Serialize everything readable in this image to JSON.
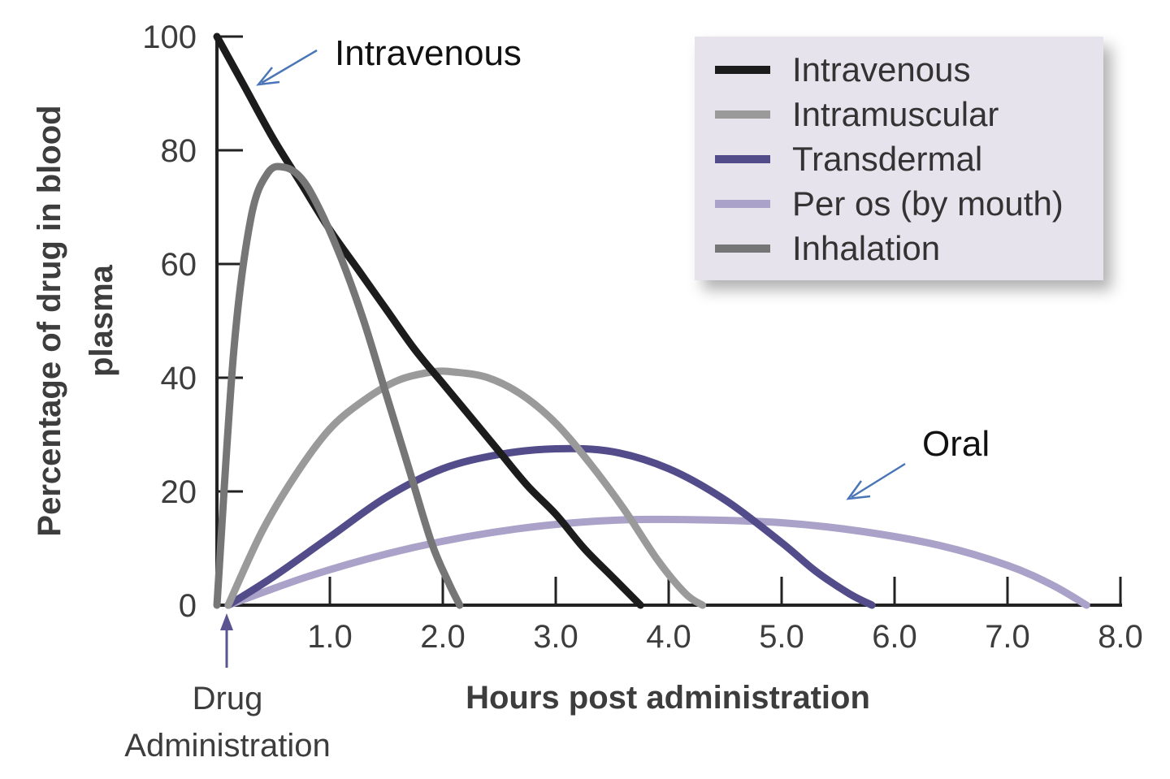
{
  "chart_data": {
    "type": "line",
    "ylabel_lines": [
      "Percentage of drug in blood",
      "plasma"
    ],
    "xlabel": "Hours post administration",
    "xlim": [
      0,
      8.0
    ],
    "ylim": [
      0,
      100
    ],
    "x_ticks": [
      1.0,
      2.0,
      3.0,
      4.0,
      5.0,
      6.0,
      7.0,
      8.0
    ],
    "x_tick_labels": [
      "1.0",
      "2.0",
      "3.0",
      "4.0",
      "5.0",
      "6.0",
      "7.0",
      "8.0"
    ],
    "y_ticks": [
      0,
      20,
      40,
      60,
      80,
      100
    ],
    "y_tick_labels": [
      "0",
      "20",
      "40",
      "60",
      "80",
      "100"
    ],
    "grid": false,
    "legend_position": "top-right",
    "series": [
      {
        "name": "Intravenous",
        "color": "#1c1c1c",
        "x": [
          0,
          0.25,
          0.5,
          0.75,
          1.0,
          1.25,
          1.5,
          1.75,
          2.0,
          2.25,
          2.5,
          2.75,
          3.0,
          3.25,
          3.5,
          3.75
        ],
        "y": [
          100,
          91,
          82,
          74,
          66,
          59,
          52,
          45,
          39,
          33,
          27,
          21,
          16,
          10,
          5,
          0
        ]
      },
      {
        "name": "Intramuscular",
        "color": "#9a9a9a",
        "x": [
          0.1,
          0.4,
          0.7,
          1.0,
          1.3,
          1.6,
          1.9,
          2.1,
          2.4,
          2.7,
          3.0,
          3.3,
          3.6,
          3.9,
          4.15,
          4.3
        ],
        "y": [
          0,
          13,
          23,
          31,
          36,
          39.5,
          41,
          41,
          40,
          37,
          32,
          25,
          17,
          8,
          2,
          0
        ]
      },
      {
        "name": "Transdermal",
        "color": "#534c8a",
        "x": [
          0.1,
          0.5,
          1.0,
          1.5,
          2.0,
          2.5,
          3.0,
          3.5,
          4.0,
          4.5,
          5.0,
          5.3,
          5.6,
          5.8
        ],
        "y": [
          0,
          5,
          12,
          19,
          24,
          26.5,
          27.5,
          27,
          24,
          18.5,
          11,
          6,
          2,
          0
        ]
      },
      {
        "name": "Per os (by mouth)",
        "color": "#aaa2c8",
        "x": [
          0.1,
          0.8,
          1.5,
          2.2,
          2.9,
          3.6,
          4.3,
          5.0,
          5.7,
          6.4,
          7.0,
          7.4,
          7.7
        ],
        "y": [
          0,
          5,
          9,
          12,
          14,
          15,
          15,
          14.5,
          13,
          10.5,
          7,
          3.5,
          0
        ]
      },
      {
        "name": "Inhalation",
        "color": "#767676",
        "x": [
          0,
          0.15,
          0.3,
          0.45,
          0.6,
          0.75,
          0.9,
          1.1,
          1.3,
          1.5,
          1.7,
          1.9,
          2.05,
          2.15
        ],
        "y": [
          0,
          45,
          68,
          76,
          77,
          75,
          70,
          61,
          50,
          37,
          24,
          11,
          4,
          0
        ]
      }
    ],
    "annotations": [
      {
        "text": "Intravenous"
      },
      {
        "text": "Oral"
      },
      {
        "text_lines": [
          "Drug",
          "Administration"
        ]
      }
    ]
  }
}
